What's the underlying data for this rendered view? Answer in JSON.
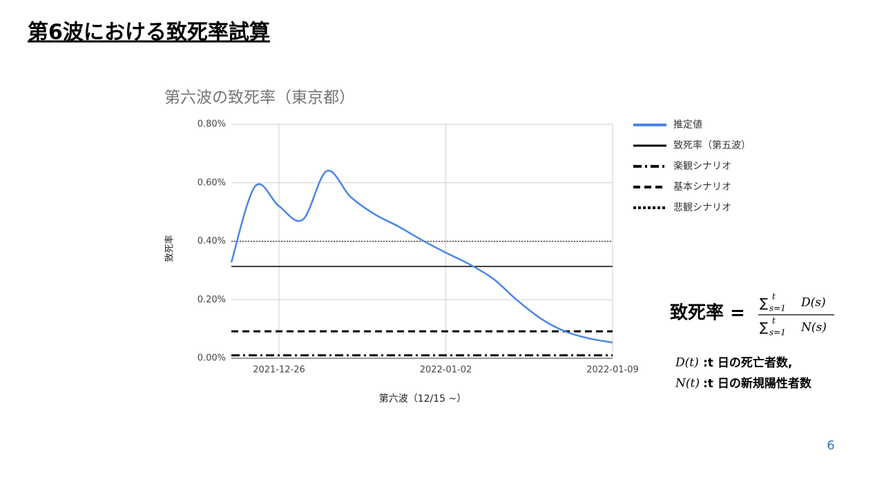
{
  "slide_title": "第6波における致死率試算",
  "chart_data": {
    "type": "line",
    "title": "第六波の致死率（東京都）",
    "x_label": "第六波（12/15 ~）",
    "y_label": "致死率",
    "x": [
      "2021-12-24",
      "2021-12-25",
      "2021-12-26",
      "2021-12-27",
      "2021-12-28",
      "2021-12-29",
      "2021-12-30",
      "2021-12-31",
      "2022-01-01",
      "2022-01-02",
      "2022-01-03",
      "2022-01-04",
      "2022-01-05",
      "2022-01-06",
      "2022-01-07",
      "2022-01-08",
      "2022-01-09"
    ],
    "xlim": [
      "2021-12-24",
      "2022-01-09"
    ],
    "xticks": [
      "2021-12-26",
      "2022-01-02",
      "2022-01-09"
    ],
    "ylim": [
      0,
      0.8
    ],
    "yticks": [
      {
        "value": 0,
        "label": "0.00%"
      },
      {
        "value": 0.2,
        "label": "0.20%"
      },
      {
        "value": 0.4,
        "label": "0.40%"
      },
      {
        "value": 0.6,
        "label": "0.60%"
      },
      {
        "value": 0.8,
        "label": "0.80%"
      }
    ],
    "grid": true,
    "legend": "right",
    "series": [
      {
        "name": "推定値",
        "color": "#4a86e8",
        "values": [
          0.328,
          0.588,
          0.52,
          0.474,
          0.64,
          0.552,
          0.493,
          0.451,
          0.404,
          0.361,
          0.321,
          0.271,
          0.198,
          0.135,
          0.092,
          0.068,
          0.054
        ]
      }
    ],
    "reference_lines": [
      {
        "name": "致死率（第五波）",
        "color": "#000000",
        "dash": "solid",
        "value": 0.314
      },
      {
        "name": "楽観シナリオ",
        "color": "#000000",
        "dash": "dashdot",
        "value": 0.01
      },
      {
        "name": "基本シナリオ",
        "color": "#000000",
        "dash": "dashed",
        "value": 0.092
      },
      {
        "name": "悲観シナリオ",
        "color": "#000000",
        "dash": "dotted",
        "value": 0.4
      }
    ]
  },
  "formula": {
    "lhs": "致死率 =",
    "sum": "∑",
    "sub": "s=1",
    "sup": "t",
    "numerator": "D(s)",
    "denominator": "N(s)"
  },
  "notes": [
    {
      "symbol": "D(t)",
      "text": ":t 日の死亡者数,"
    },
    {
      "symbol": "N(t)",
      "text": ":t 日の新規陽性者数"
    }
  ],
  "page_number": "6"
}
